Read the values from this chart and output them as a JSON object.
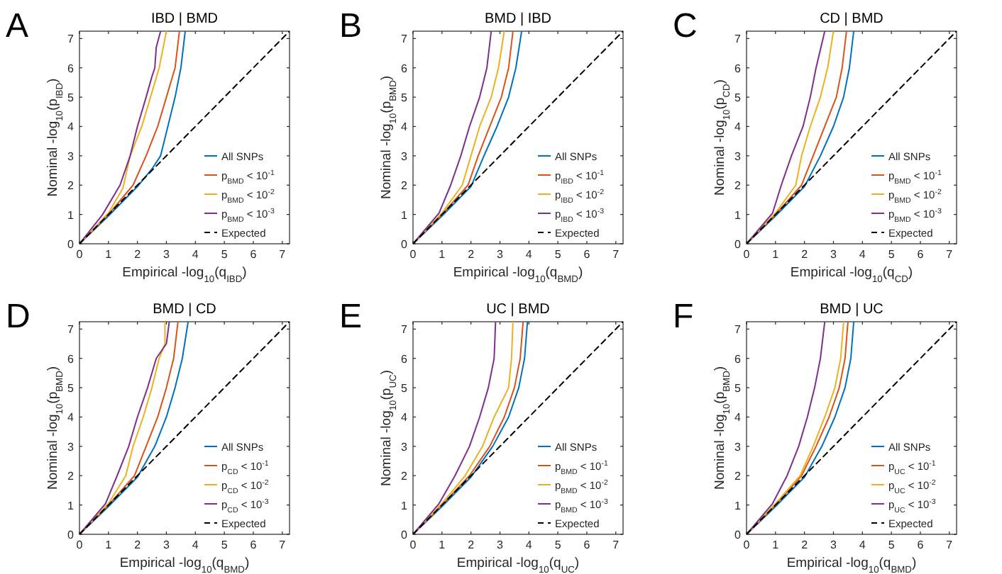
{
  "chart_data": [
    {
      "type": "line",
      "title": "IBD | BMD",
      "xlabel": "Empirical -log$_{10}$(q$_{IBD}$)",
      "ylabel": "Nominal -log$_{10}$(p$_{IBD}$)",
      "annotations": [
        "A"
      ],
      "xlim": [
        0,
        7.25
      ],
      "ylim": [
        0,
        7.25
      ],
      "xticks": [
        0,
        1,
        2,
        3,
        4,
        5,
        6,
        7
      ],
      "yticks": [
        0,
        1,
        2,
        3,
        4,
        5,
        6,
        7
      ],
      "legend": "bottom right",
      "series": [
        {
          "name": "All SNPs",
          "color": "#0072bd",
          "line_style": "solid",
          "x": [
            0,
            1,
            2,
            2.5,
            2.8,
            3.05,
            3.3,
            3.5,
            3.65
          ],
          "values": [
            0,
            0.95,
            1.95,
            2.55,
            3,
            4,
            5,
            6,
            7.25
          ]
        },
        {
          "name": "p$_{BMD}$ < 10$^{-1}$",
          "color": "#d95319",
          "line_style": "solid",
          "x": [
            0,
            1,
            1.85,
            2.3,
            2.7,
            3,
            3.3,
            3.45
          ],
          "values": [
            0,
            1,
            2,
            3,
            4,
            5,
            6,
            7.25
          ]
        },
        {
          "name": "p$_{BMD}$ < 10$^{-2}$",
          "color": "#edb120",
          "line_style": "solid",
          "x": [
            0,
            1,
            1.5,
            1.75,
            2.15,
            2.45,
            2.75,
            3
          ],
          "values": [
            0,
            1.05,
            1.9,
            3,
            4,
            5,
            6,
            7.25
          ]
        },
        {
          "name": "p$_{BMD}$ < 10$^{-3}$",
          "color": "#7e2f8e",
          "line_style": "solid",
          "x": [
            0,
            0.8,
            1.4,
            1.75,
            2,
            2.3,
            2.5,
            2.6,
            2.65,
            2.8
          ],
          "values": [
            0,
            1,
            2,
            3,
            4,
            5,
            5.7,
            6,
            6.7,
            7.25
          ]
        },
        {
          "name": "Expected",
          "color": "#000000",
          "line_style": "dashed",
          "x": [
            0,
            7.25
          ],
          "values": [
            0,
            7.25
          ]
        }
      ]
    },
    {
      "type": "line",
      "title": "BMD | IBD",
      "xlabel": "Empirical -log$_{10}$(q$_{BMD}$)",
      "ylabel": "Nominal -log$_{10}$(p$_{BMD}$)",
      "annotations": [
        "B"
      ],
      "xlim": [
        0,
        7.25
      ],
      "ylim": [
        0,
        7.25
      ],
      "xticks": [
        0,
        1,
        2,
        3,
        4,
        5,
        6,
        7
      ],
      "yticks": [
        0,
        1,
        2,
        3,
        4,
        5,
        6,
        7
      ],
      "legend": "bottom right",
      "series": [
        {
          "name": "All SNPs",
          "color": "#0072bd",
          "line_style": "solid",
          "x": [
            0,
            1,
            2,
            2.45,
            2.9,
            3.3,
            3.55,
            3.75
          ],
          "values": [
            0,
            0.95,
            1.95,
            3,
            4,
            5,
            6,
            7.25
          ]
        },
        {
          "name": "p$_{IBD}$ < 10$^{-1}$",
          "color": "#d95319",
          "line_style": "solid",
          "x": [
            0,
            1,
            1.9,
            2.25,
            2.65,
            3.05,
            3.3,
            3.45
          ],
          "values": [
            0,
            1,
            2,
            3,
            4,
            5,
            6,
            7.25
          ]
        },
        {
          "name": "p$_{IBD}$ < 10$^{-2}$",
          "color": "#edb120",
          "line_style": "solid",
          "x": [
            0,
            1,
            1.7,
            2,
            2.3,
            2.7,
            2.95,
            3.15
          ],
          "values": [
            0,
            1.05,
            2,
            3,
            4,
            5,
            6,
            7.25
          ]
        },
        {
          "name": "p$_{IBD}$ < 10$^{-3}$",
          "color": "#7e2f8e",
          "line_style": "solid",
          "x": [
            0,
            0.9,
            1.3,
            1.65,
            1.95,
            2.3,
            2.55,
            2.7
          ],
          "values": [
            0,
            1.05,
            2,
            3,
            4,
            5,
            6,
            7.25
          ]
        },
        {
          "name": "Expected",
          "color": "#000000",
          "line_style": "dashed",
          "x": [
            0,
            7.25
          ],
          "values": [
            0,
            7.25
          ]
        }
      ]
    },
    {
      "type": "line",
      "title": "CD | BMD",
      "xlabel": "Empirical -log$_{10}$(q$_{CD}$)",
      "ylabel": "Nominal -log$_{10}$(p$_{CD}$)",
      "annotations": [
        "C"
      ],
      "xlim": [
        0,
        7.25
      ],
      "ylim": [
        0,
        7.25
      ],
      "xticks": [
        0,
        1,
        2,
        3,
        4,
        5,
        6,
        7
      ],
      "yticks": [
        0,
        1,
        2,
        3,
        4,
        5,
        6,
        7
      ],
      "legend": "bottom right",
      "series": [
        {
          "name": "All SNPs",
          "color": "#0072bd",
          "line_style": "solid",
          "x": [
            0,
            1,
            2,
            2.55,
            3,
            3.35,
            3.55,
            3.7
          ],
          "values": [
            0,
            0.95,
            1.95,
            3,
            4,
            5,
            6,
            7.25
          ]
        },
        {
          "name": "p$_{BMD}$ < 10$^{-1}$",
          "color": "#d95319",
          "line_style": "solid",
          "x": [
            0,
            1,
            1.9,
            2.3,
            2.7,
            3.1,
            3.3,
            3.45
          ],
          "values": [
            0,
            1,
            2,
            3,
            4,
            5,
            6,
            7.25
          ]
        },
        {
          "name": "p$_{BMD}$ < 10$^{-2}$",
          "color": "#edb120",
          "line_style": "solid",
          "x": [
            0,
            1,
            1.7,
            1.9,
            2.2,
            2.55,
            2.8,
            3
          ],
          "values": [
            0,
            1.05,
            2,
            3,
            4,
            5,
            6,
            7.25
          ]
        },
        {
          "name": "p$_{BMD}$ < 10$^{-3}$",
          "color": "#7e2f8e",
          "line_style": "solid",
          "x": [
            0,
            0.9,
            1.2,
            1.55,
            1.95,
            2.2,
            2.4,
            2.7
          ],
          "values": [
            0,
            1.05,
            2,
            3,
            4,
            5,
            6,
            7.25
          ]
        },
        {
          "name": "Expected",
          "color": "#000000",
          "line_style": "dashed",
          "x": [
            0,
            7.25
          ],
          "values": [
            0,
            7.25
          ]
        }
      ]
    },
    {
      "type": "line",
      "title": "BMD | CD",
      "xlabel": "Empirical -log$_{10}$(q$_{BMD}$)",
      "ylabel": "Nominal -log$_{10}$(p$_{BMD}$)",
      "annotations": [
        "D"
      ],
      "xlim": [
        0,
        7.25
      ],
      "ylim": [
        0,
        7.25
      ],
      "xticks": [
        0,
        1,
        2,
        3,
        4,
        5,
        6,
        7
      ],
      "yticks": [
        0,
        1,
        2,
        3,
        4,
        5,
        6,
        7
      ],
      "legend": "bottom right",
      "series": [
        {
          "name": "All SNPs",
          "color": "#0072bd",
          "line_style": "solid",
          "x": [
            0,
            1,
            2,
            2.6,
            3,
            3.3,
            3.55,
            3.75
          ],
          "values": [
            0,
            0.95,
            1.95,
            3,
            4,
            5,
            6,
            7.25
          ]
        },
        {
          "name": "p$_{CD}$ < 10$^{-1}$",
          "color": "#d95319",
          "line_style": "solid",
          "x": [
            0,
            1,
            1.9,
            2.3,
            2.7,
            3,
            3.25,
            3.4
          ],
          "values": [
            0,
            1,
            2,
            3,
            4,
            5,
            6,
            7.25
          ]
        },
        {
          "name": "p$_{CD}$ < 10$^{-2}$",
          "color": "#edb120",
          "line_style": "solid",
          "x": [
            0,
            1,
            1.6,
            1.85,
            2.2,
            2.5,
            2.75,
            2.95,
            2.95
          ],
          "values": [
            0,
            1.05,
            2,
            3,
            4,
            5,
            6,
            6.5,
            7.25
          ]
        },
        {
          "name": "p$_{CD}$ < 10$^{-3}$",
          "color": "#7e2f8e",
          "line_style": "solid",
          "x": [
            0,
            0.9,
            1.3,
            1.7,
            2,
            2.35,
            2.65,
            3,
            3.1
          ],
          "values": [
            0,
            1.05,
            2,
            3,
            4,
            5,
            6,
            6.5,
            7.25
          ]
        },
        {
          "name": "Expected",
          "color": "#000000",
          "line_style": "dashed",
          "x": [
            0,
            7.25
          ],
          "values": [
            0,
            7.25
          ]
        }
      ]
    },
    {
      "type": "line",
      "title": "UC | BMD",
      "xlabel": "Empirical -log$_{10}$(q$_{UC}$)",
      "ylabel": "Nominal -log$_{10}$(p$_{UC}$)",
      "annotations": [
        "E"
      ],
      "xlim": [
        0,
        7.25
      ],
      "ylim": [
        0,
        7.25
      ],
      "xticks": [
        0,
        1,
        2,
        3,
        4,
        5,
        6,
        7
      ],
      "yticks": [
        0,
        1,
        2,
        3,
        4,
        5,
        6,
        7
      ],
      "legend": "bottom right",
      "series": [
        {
          "name": "All SNPs",
          "color": "#0072bd",
          "line_style": "solid",
          "x": [
            0,
            1,
            2,
            2.75,
            3.3,
            3.65,
            3.85,
            3.95
          ],
          "values": [
            0,
            0.95,
            1.95,
            3,
            4,
            5,
            6,
            7.25
          ]
        },
        {
          "name": "p$_{BMD}$ < 10$^{-1}$",
          "color": "#d95319",
          "line_style": "solid",
          "x": [
            0,
            1,
            1.95,
            2.65,
            3.15,
            3.5,
            3.7,
            3.8
          ],
          "values": [
            0,
            1,
            2,
            3,
            4,
            5,
            6,
            7.25
          ]
        },
        {
          "name": "p$_{BMD}$ < 10$^{-2}$",
          "color": "#edb120",
          "line_style": "solid",
          "x": [
            0,
            1,
            1.8,
            2.4,
            2.8,
            3.3,
            3.4,
            3.45
          ],
          "values": [
            0,
            1.05,
            2,
            3,
            4,
            5,
            6,
            7.25
          ]
        },
        {
          "name": "p$_{BMD}$ < 10$^{-3}$",
          "color": "#7e2f8e",
          "line_style": "solid",
          "x": [
            0,
            0.9,
            1.45,
            1.95,
            2.3,
            2.6,
            2.8,
            2.85
          ],
          "values": [
            0,
            1.05,
            2,
            3,
            4,
            5,
            6,
            7.25
          ]
        },
        {
          "name": "Expected",
          "color": "#000000",
          "line_style": "dashed",
          "x": [
            0,
            7.25
          ],
          "values": [
            0,
            7.25
          ]
        }
      ]
    },
    {
      "type": "line",
      "title": "BMD | UC",
      "xlabel": "Empirical -log$_{10}$(q$_{BMD}$)",
      "ylabel": "Nominal -log$_{10}$(p$_{BMD}$)",
      "annotations": [
        "F"
      ],
      "xlim": [
        0,
        7.25
      ],
      "ylim": [
        0,
        7.25
      ],
      "xticks": [
        0,
        1,
        2,
        3,
        4,
        5,
        6,
        7
      ],
      "yticks": [
        0,
        1,
        2,
        3,
        4,
        5,
        6,
        7
      ],
      "legend": "bottom right",
      "series": [
        {
          "name": "All SNPs",
          "color": "#0072bd",
          "line_style": "solid",
          "x": [
            0,
            1,
            2,
            2.6,
            3.05,
            3.4,
            3.6,
            3.7
          ],
          "values": [
            0,
            0.95,
            1.95,
            3,
            4,
            5,
            6,
            7.25
          ]
        },
        {
          "name": "p$_{UC}$ < 10$^{-1}$",
          "color": "#d95319",
          "line_style": "solid",
          "x": [
            0,
            1,
            1.9,
            2.4,
            2.85,
            3.2,
            3.4,
            3.5
          ],
          "values": [
            0,
            1,
            2,
            3,
            4,
            5,
            6,
            7.25
          ]
        },
        {
          "name": "p$_{UC}$ < 10$^{-2}$",
          "color": "#edb120",
          "line_style": "solid",
          "x": [
            0,
            1,
            1.85,
            2.3,
            2.7,
            3.05,
            3.25,
            3.35
          ],
          "values": [
            0,
            1.05,
            2,
            3,
            4,
            5,
            6,
            7.25
          ]
        },
        {
          "name": "p$_{UC}$ < 10$^{-3}$",
          "color": "#7e2f8e",
          "line_style": "solid",
          "x": [
            0,
            0.9,
            1.4,
            1.8,
            2.1,
            2.35,
            2.55,
            2.7
          ],
          "values": [
            0,
            1.05,
            2,
            3,
            4,
            5,
            6,
            7.25
          ]
        },
        {
          "name": "Expected",
          "color": "#000000",
          "line_style": "dashed",
          "x": [
            0,
            7.25
          ],
          "values": [
            0,
            7.25
          ]
        }
      ]
    }
  ]
}
